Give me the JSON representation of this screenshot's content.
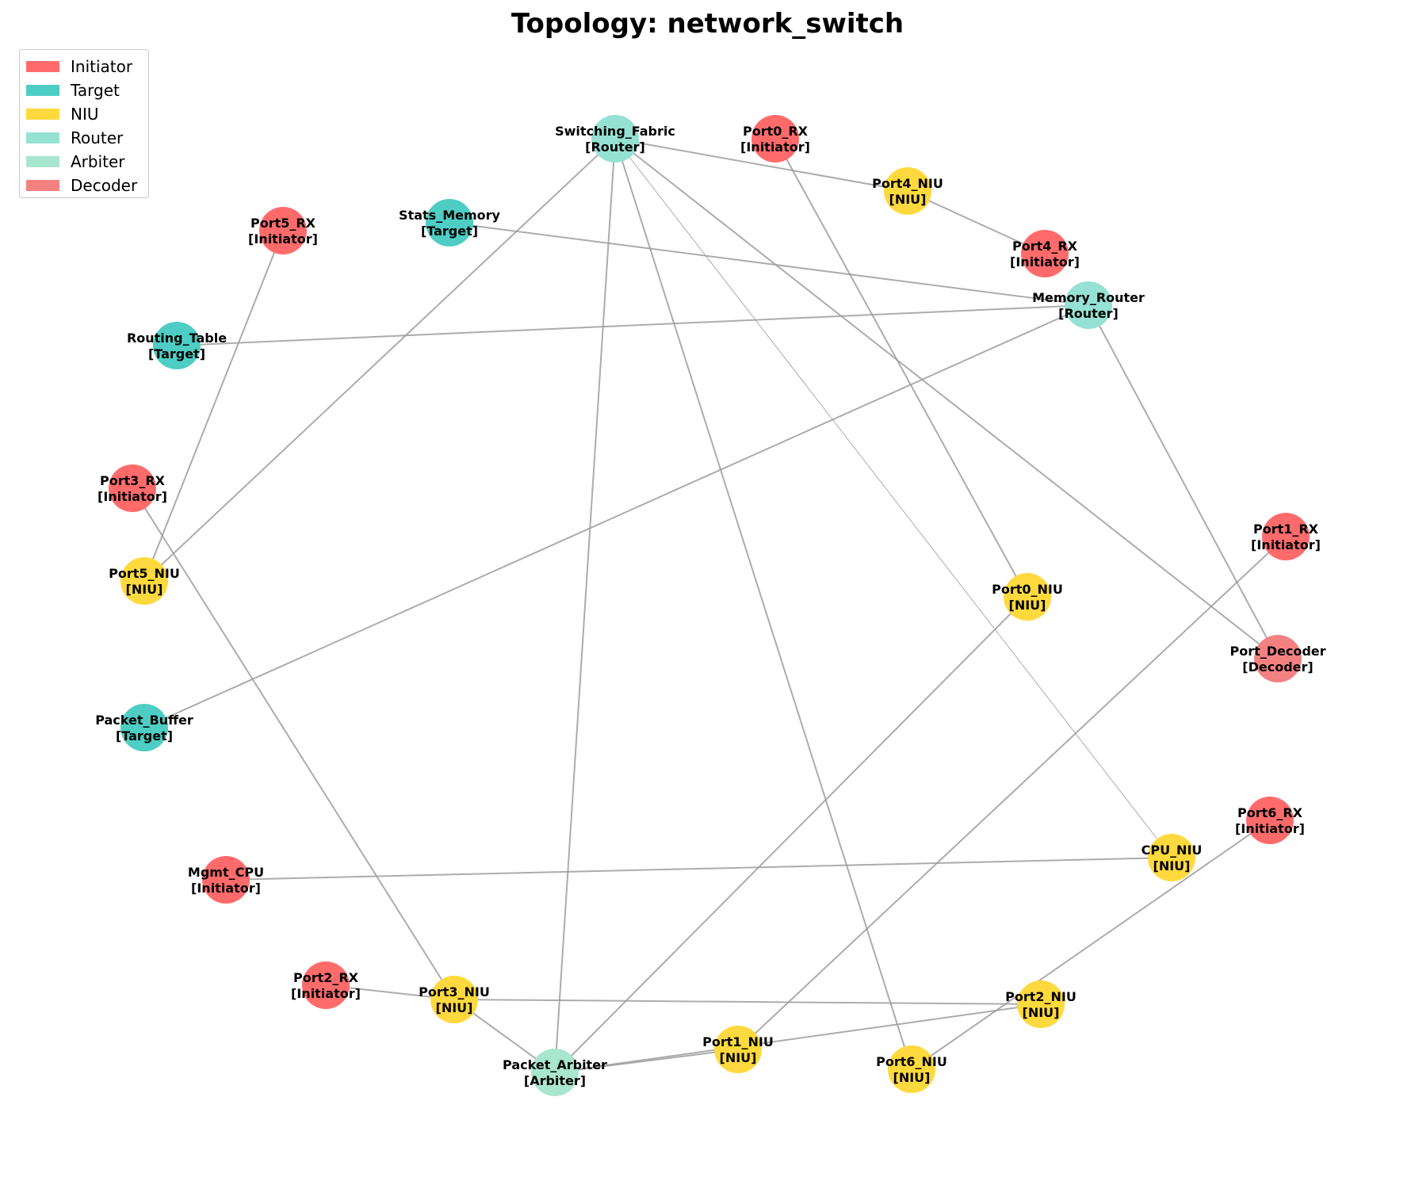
{
  "title": "Topology: network_switch",
  "legend": [
    {
      "label": "Initiator",
      "color": "#ff6b6b"
    },
    {
      "label": "Target",
      "color": "#4ecdc4"
    },
    {
      "label": "NIU",
      "color": "#ffd93d"
    },
    {
      "label": "Router",
      "color": "#95e1d3"
    },
    {
      "label": "Arbiter",
      "color": "#a8e6cf"
    },
    {
      "label": "Decoder",
      "color": "#f38181"
    }
  ],
  "nodes": [
    {
      "id": "Switching_Fabric",
      "role": "Router",
      "color": "#95e1d3"
    },
    {
      "id": "Port0_RX",
      "role": "Initiator",
      "color": "#ff6b6b"
    },
    {
      "id": "Port4_NIU",
      "role": "NIU",
      "color": "#ffd93d"
    },
    {
      "id": "Port4_RX",
      "role": "Initiator",
      "color": "#ff6b6b"
    },
    {
      "id": "Stats_Memory",
      "role": "Target",
      "color": "#4ecdc4"
    },
    {
      "id": "Port5_RX",
      "role": "Initiator",
      "color": "#ff6b6b"
    },
    {
      "id": "Memory_Router",
      "role": "Router",
      "color": "#95e1d3"
    },
    {
      "id": "Routing_Table",
      "role": "Target",
      "color": "#4ecdc4"
    },
    {
      "id": "Port3_RX",
      "role": "Initiator",
      "color": "#ff6b6b"
    },
    {
      "id": "Port1_RX",
      "role": "Initiator",
      "color": "#ff6b6b"
    },
    {
      "id": "Port5_NIU",
      "role": "NIU",
      "color": "#ffd93d"
    },
    {
      "id": "Port0_NIU",
      "role": "NIU",
      "color": "#ffd93d"
    },
    {
      "id": "Port_Decoder",
      "role": "Decoder",
      "color": "#f38181"
    },
    {
      "id": "Packet_Buffer",
      "role": "Target",
      "color": "#4ecdc4"
    },
    {
      "id": "Port6_RX",
      "role": "Initiator",
      "color": "#ff6b6b"
    },
    {
      "id": "CPU_NIU",
      "role": "NIU",
      "color": "#ffd93d"
    },
    {
      "id": "Mgmt_CPU",
      "role": "Initiator",
      "color": "#ff6b6b"
    },
    {
      "id": "Port2_RX",
      "role": "Initiator",
      "color": "#ff6b6b"
    },
    {
      "id": "Port3_NIU",
      "role": "NIU",
      "color": "#ffd93d"
    },
    {
      "id": "Port2_NIU",
      "role": "NIU",
      "color": "#ffd93d"
    },
    {
      "id": "Port1_NIU",
      "role": "NIU",
      "color": "#ffd93d"
    },
    {
      "id": "Packet_Arbiter",
      "role": "Arbiter",
      "color": "#a8e6cf"
    },
    {
      "id": "Port6_NIU",
      "role": "NIU",
      "color": "#ffd93d"
    }
  ],
  "edges": [
    [
      "Switching_Fabric",
      "Port4_NIU"
    ],
    [
      "Switching_Fabric",
      "Port5_NIU"
    ],
    [
      "Switching_Fabric",
      "Packet_Arbiter"
    ],
    [
      "Switching_Fabric",
      "Port6_NIU"
    ],
    [
      "Switching_Fabric",
      "CPU_NIU"
    ],
    [
      "Switching_Fabric",
      "Port_Decoder"
    ],
    [
      "Port0_RX",
      "Port0_NIU"
    ],
    [
      "Port4_NIU",
      "Port4_RX"
    ],
    [
      "Stats_Memory",
      "Memory_Router"
    ],
    [
      "Routing_Table",
      "Memory_Router"
    ],
    [
      "Memory_Router",
      "Packet_Buffer"
    ],
    [
      "Memory_Router",
      "Port_Decoder"
    ],
    [
      "Port5_RX",
      "Port5_NIU"
    ],
    [
      "Port3_RX",
      "Port3_NIU"
    ],
    [
      "Port1_RX",
      "Port1_NIU"
    ],
    [
      "Port0_NIU",
      "Packet_Arbiter"
    ],
    [
      "Port6_RX",
      "Port6_NIU"
    ],
    [
      "Mgmt_CPU",
      "CPU_NIU"
    ],
    [
      "Port2_RX",
      "Port3_NIU"
    ],
    [
      "Port3_NIU",
      "Port2_NIU"
    ],
    [
      "Port3_NIU",
      "Packet_Arbiter"
    ],
    [
      "Packet_Arbiter",
      "Port1_NIU"
    ],
    [
      "Packet_Arbiter",
      "Port2_NIU"
    ]
  ]
}
